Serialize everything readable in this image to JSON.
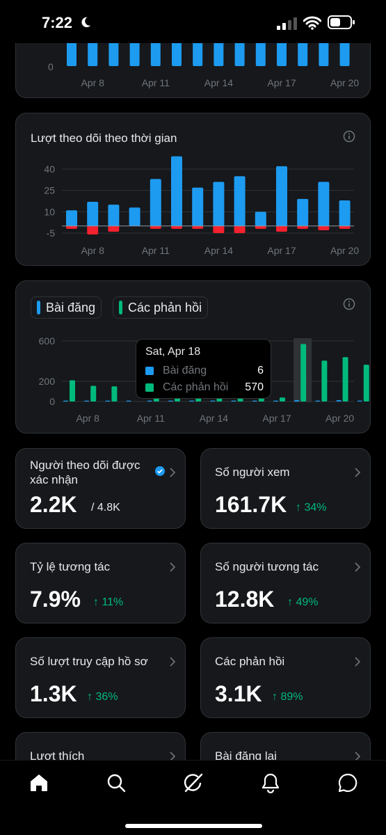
{
  "status_bar": {
    "time": "7:22"
  },
  "top_chart": {
    "y_zero": "0",
    "x_ticks": [
      "Apr 8",
      "Apr 11",
      "Apr 14",
      "Apr 17",
      "Apr 20"
    ]
  },
  "followers_chart": {
    "title": "Lượt theo dõi theo thời gian",
    "chart_data": {
      "type": "bar",
      "categories": [
        "Apr 7",
        "Apr 8",
        "Apr 9",
        "Apr 10",
        "Apr 11",
        "Apr 12",
        "Apr 13",
        "Apr 14",
        "Apr 15",
        "Apr 16",
        "Apr 17",
        "Apr 18",
        "Apr 19",
        "Apr 20",
        "Apr 21"
      ],
      "series": [
        {
          "values": [
            11,
            17,
            15,
            13,
            33,
            49,
            27,
            31,
            35,
            10,
            42,
            19,
            31,
            18,
            0
          ]
        },
        {
          "values": [
            -2,
            -6,
            -4,
            0,
            -2,
            -2,
            -2,
            -5,
            -5,
            -2,
            -4,
            -2,
            -3,
            -2,
            0
          ]
        }
      ],
      "y_ticks": [
        "40",
        "25",
        "10",
        "-5"
      ],
      "x_ticks": [
        "Apr 8",
        "Apr 11",
        "Apr 14",
        "Apr 17",
        "Apr 20"
      ],
      "colors": [
        "#1d9bf0",
        "#f4212e"
      ]
    }
  },
  "posts_chart": {
    "legend": [
      {
        "label": "Bài đăng",
        "color": "#1d9bf0"
      },
      {
        "label": "Các phản hồi",
        "color": "#00ba7c"
      }
    ],
    "chart_data": {
      "type": "bar",
      "categories": [
        "Apr 7",
        "Apr 8",
        "Apr 9",
        "Apr 10",
        "Apr 11",
        "Apr 12",
        "Apr 13",
        "Apr 14",
        "Apr 15",
        "Apr 16",
        "Apr 17",
        "Apr 18",
        "Apr 19",
        "Apr 20",
        "Apr 21"
      ],
      "series": [
        {
          "name": "Bài đăng",
          "values": [
            2,
            2,
            2,
            2,
            2,
            2,
            2,
            2,
            2,
            2,
            2,
            6,
            2,
            6,
            2
          ]
        },
        {
          "name": "Các phản hồi",
          "values": [
            210,
            155,
            150,
            0,
            80,
            40,
            30,
            40,
            40,
            40,
            40,
            570,
            405,
            440,
            365
          ]
        }
      ],
      "y_ticks": [
        "600",
        "200",
        "0"
      ],
      "x_ticks": [
        "Apr 8",
        "Apr 11",
        "Apr 14",
        "Apr 17",
        "Apr 20"
      ],
      "ylim": [
        0,
        600
      ],
      "highlight": "Apr 18"
    },
    "tooltip": {
      "date": "Sat, Apr 18",
      "rows": [
        {
          "label": "Bài đăng",
          "value": "6",
          "color": "#1d9bf0"
        },
        {
          "label": "Các phản hồi",
          "value": "570",
          "color": "#00ba7c"
        }
      ]
    }
  },
  "metrics": [
    {
      "label": "Người theo dõi được xác nhận",
      "value": "2.2K",
      "sub": "/ 4.8K",
      "delta": ""
    },
    {
      "label": "Số người xem",
      "value": "161.7K",
      "sub": "",
      "delta": "↑ 34%"
    },
    {
      "label": "Tỷ lệ tương tác",
      "value": "7.9%",
      "sub": "",
      "delta": "↑ 11%"
    },
    {
      "label": "Số người tương tác",
      "value": "12.8K",
      "sub": "",
      "delta": "↑ 49%"
    },
    {
      "label": "Số lượt truy cập hồ sơ",
      "value": "1.3K",
      "sub": "",
      "delta": "↑ 36%"
    },
    {
      "label": "Các phản hồi",
      "value": "3.1K",
      "sub": "",
      "delta": "↑ 89%"
    },
    {
      "label": "Lượt thích",
      "value": "",
      "sub": "",
      "delta": ""
    },
    {
      "label": "Bài đăng lại",
      "value": "",
      "sub": "",
      "delta": ""
    }
  ],
  "tabs": [
    "home-icon",
    "search-icon",
    "grok-icon",
    "notifications-icon",
    "messages-icon"
  ]
}
